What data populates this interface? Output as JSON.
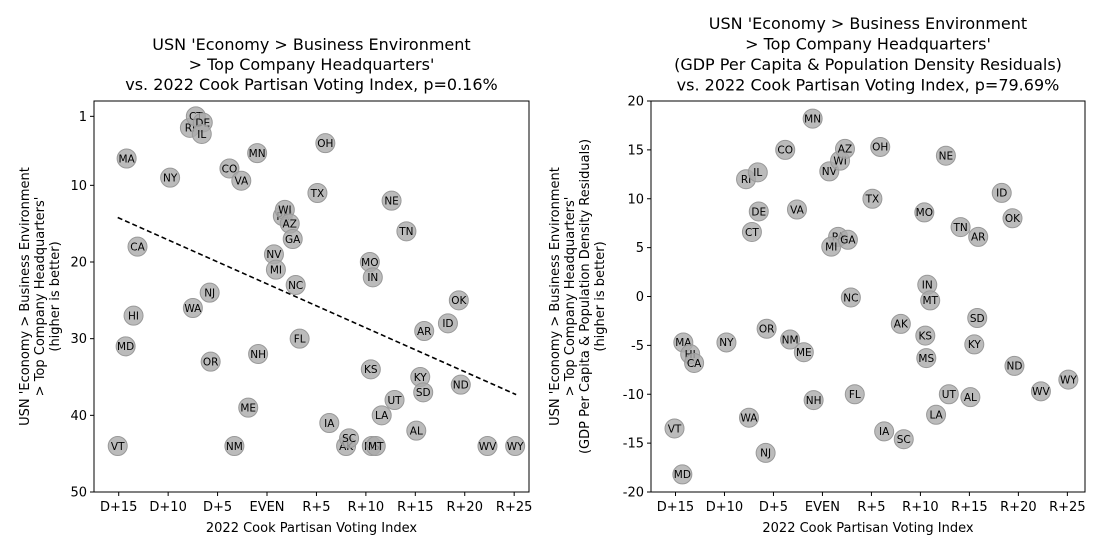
{
  "chart_data": [
    {
      "type": "scatter",
      "title": [
        "USN 'Economy > Business Environment",
        "> Top Company Headquarters'",
        "vs. 2022 Cook Partisan Voting Index, p=0.16%"
      ],
      "xlabel": "2022 Cook Partisan Voting Index",
      "ylabel": [
        "USN 'Economy > Business Environment",
        "> Top Company Headquarters'",
        "(higher is better)"
      ],
      "x_ticks": [
        {
          "value": -15,
          "label": "D+15"
        },
        {
          "value": -10,
          "label": "D+10"
        },
        {
          "value": -5,
          "label": "D+5"
        },
        {
          "value": 0,
          "label": "EVEN"
        },
        {
          "value": 5,
          "label": "R+5"
        },
        {
          "value": 10,
          "label": "R+10"
        },
        {
          "value": 15,
          "label": "R+15"
        },
        {
          "value": 20,
          "label": "R+20"
        },
        {
          "value": 25,
          "label": "R+25"
        }
      ],
      "y_ticks": [
        1,
        10,
        20,
        30,
        40,
        50
      ],
      "xlim": [
        -17.5,
        26.5
      ],
      "ylim": [
        50,
        -1
      ],
      "y_inverted": true,
      "trendline": {
        "style": "dashed",
        "x": [
          -15.1,
          25.2
        ],
        "y": [
          14.2,
          37.3
        ]
      },
      "points": [
        {
          "label": "VT",
          "x": -15.1,
          "y": 44
        },
        {
          "label": "MD",
          "x": -14.3,
          "y": 31
        },
        {
          "label": "MA",
          "x": -14.2,
          "y": 6.5
        },
        {
          "label": "HI",
          "x": -13.5,
          "y": 27
        },
        {
          "label": "CA",
          "x": -13.1,
          "y": 18
        },
        {
          "label": "NY",
          "x": -9.8,
          "y": 9
        },
        {
          "label": "WA",
          "x": -7.5,
          "y": 26
        },
        {
          "label": "RI",
          "x": -7.8,
          "y": 2.5
        },
        {
          "label": "CT",
          "x": -7.2,
          "y": 1
        },
        {
          "label": "DE",
          "x": -6.5,
          "y": 1.8
        },
        {
          "label": "IL",
          "x": -6.6,
          "y": 3.3
        },
        {
          "label": "NJ",
          "x": -5.8,
          "y": 24
        },
        {
          "label": "OR",
          "x": -5.7,
          "y": 33
        },
        {
          "label": "CO",
          "x": -3.8,
          "y": 7.8
        },
        {
          "label": "NM",
          "x": -3.3,
          "y": 44
        },
        {
          "label": "VA",
          "x": -2.6,
          "y": 9.4
        },
        {
          "label": "ME",
          "x": -1.9,
          "y": 39
        },
        {
          "label": "MN",
          "x": -1,
          "y": 5.8
        },
        {
          "label": "NH",
          "x": -0.9,
          "y": 32
        },
        {
          "label": "NV",
          "x": 0.7,
          "y": 19
        },
        {
          "label": "MI",
          "x": 0.9,
          "y": 21
        },
        {
          "label": "PA",
          "x": 1.6,
          "y": 14
        },
        {
          "label": "WI",
          "x": 1.8,
          "y": 13.2
        },
        {
          "label": "AZ",
          "x": 2.3,
          "y": 15
        },
        {
          "label": "GA",
          "x": 2.6,
          "y": 17
        },
        {
          "label": "NC",
          "x": 2.9,
          "y": 23
        },
        {
          "label": "FL",
          "x": 3.3,
          "y": 30
        },
        {
          "label": "OH",
          "x": 5.9,
          "y": 4.5
        },
        {
          "label": "TX",
          "x": 5.1,
          "y": 11
        },
        {
          "label": "IA",
          "x": 6.3,
          "y": 41
        },
        {
          "label": "AK",
          "x": 8,
          "y": 44
        },
        {
          "label": "SC",
          "x": 8.3,
          "y": 43
        },
        {
          "label": "NE",
          "x": 12.6,
          "y": 12
        },
        {
          "label": "MO",
          "x": 10.4,
          "y": 20
        },
        {
          "label": "IN",
          "x": 10.7,
          "y": 22
        },
        {
          "label": "KS",
          "x": 10.5,
          "y": 34
        },
        {
          "label": "MS",
          "x": 10.6,
          "y": 44
        },
        {
          "label": "MT",
          "x": 11,
          "y": 44
        },
        {
          "label": "LA",
          "x": 11.6,
          "y": 40
        },
        {
          "label": "UT",
          "x": 12.9,
          "y": 38
        },
        {
          "label": "TN",
          "x": 14.1,
          "y": 16
        },
        {
          "label": "AL",
          "x": 15.1,
          "y": 42
        },
        {
          "label": "KY",
          "x": 15.5,
          "y": 35
        },
        {
          "label": "SD",
          "x": 15.8,
          "y": 37
        },
        {
          "label": "AR",
          "x": 15.9,
          "y": 29
        },
        {
          "label": "ID",
          "x": 18.3,
          "y": 28
        },
        {
          "label": "OK",
          "x": 19.4,
          "y": 25
        },
        {
          "label": "ND",
          "x": 19.6,
          "y": 36
        },
        {
          "label": "WV",
          "x": 22.3,
          "y": 44
        },
        {
          "label": "WY",
          "x": 25.1,
          "y": 44
        }
      ]
    },
    {
      "type": "scatter",
      "title": [
        "USN 'Economy > Business Environment",
        "> Top Company Headquarters'",
        "(GDP Per Capita & Population Density Residuals)",
        "vs. 2022 Cook Partisan Voting Index, p=79.69%"
      ],
      "xlabel": "2022 Cook Partisan Voting Index",
      "ylabel": [
        "USN 'Economy > Business Environment",
        "> Top Company Headquarters'",
        "(GDP Per Capita & Population Density Residuals)",
        "(higher is better)"
      ],
      "x_ticks": [
        {
          "value": -15,
          "label": "D+15"
        },
        {
          "value": -10,
          "label": "D+10"
        },
        {
          "value": -5,
          "label": "D+5"
        },
        {
          "value": 0,
          "label": "EVEN"
        },
        {
          "value": 5,
          "label": "R+5"
        },
        {
          "value": 10,
          "label": "R+10"
        },
        {
          "value": 15,
          "label": "R+15"
        },
        {
          "value": 20,
          "label": "R+20"
        },
        {
          "value": 25,
          "label": "R+25"
        }
      ],
      "y_ticks": [
        20,
        15,
        10,
        5,
        0,
        -5,
        -10,
        -15,
        -20
      ],
      "xlim": [
        -17.5,
        26.8
      ],
      "ylim": [
        -20,
        20
      ],
      "y_inverted": false,
      "points": [
        {
          "label": "VT",
          "x": -15.1,
          "y": -13.5
        },
        {
          "label": "MD",
          "x": -14.3,
          "y": -18.2
        },
        {
          "label": "MA",
          "x": -14.2,
          "y": -4.7
        },
        {
          "label": "HI",
          "x": -13.5,
          "y": -5.9
        },
        {
          "label": "CA",
          "x": -13.1,
          "y": -6.8
        },
        {
          "label": "NY",
          "x": -9.8,
          "y": -4.7
        },
        {
          "label": "RI",
          "x": -7.8,
          "y": 12
        },
        {
          "label": "IL",
          "x": -6.6,
          "y": 12.7
        },
        {
          "label": "DE",
          "x": -6.5,
          "y": 8.7
        },
        {
          "label": "CT",
          "x": -7.2,
          "y": 6.6
        },
        {
          "label": "WA",
          "x": -7.5,
          "y": -12.4
        },
        {
          "label": "NJ",
          "x": -5.8,
          "y": -16
        },
        {
          "label": "OR",
          "x": -5.7,
          "y": -3.3
        },
        {
          "label": "CO",
          "x": -3.8,
          "y": 15
        },
        {
          "label": "VA",
          "x": -2.6,
          "y": 8.9
        },
        {
          "label": "NM",
          "x": -3.3,
          "y": -4.4
        },
        {
          "label": "ME",
          "x": -1.9,
          "y": -5.7
        },
        {
          "label": "MN",
          "x": -1,
          "y": 18.2
        },
        {
          "label": "NH",
          "x": -0.9,
          "y": -10.6
        },
        {
          "label": "NV",
          "x": 0.7,
          "y": 12.8
        },
        {
          "label": "WI",
          "x": 1.8,
          "y": 13.9
        },
        {
          "label": "AZ",
          "x": 2.3,
          "y": 15.1
        },
        {
          "label": "PA",
          "x": 1.6,
          "y": 6.1
        },
        {
          "label": "MI",
          "x": 0.9,
          "y": 5.1
        },
        {
          "label": "GA",
          "x": 2.6,
          "y": 5.8
        },
        {
          "label": "NC",
          "x": 2.9,
          "y": -0.1
        },
        {
          "label": "FL",
          "x": 3.3,
          "y": -10
        },
        {
          "label": "OH",
          "x": 5.9,
          "y": 15.3
        },
        {
          "label": "TX",
          "x": 5.1,
          "y": 10
        },
        {
          "label": "IA",
          "x": 6.3,
          "y": -13.8
        },
        {
          "label": "SC",
          "x": 8.3,
          "y": -14.6
        },
        {
          "label": "AK",
          "x": 8,
          "y": -2.8
        },
        {
          "label": "NE",
          "x": 12.6,
          "y": 14.4
        },
        {
          "label": "MO",
          "x": 10.4,
          "y": 8.6
        },
        {
          "label": "IN",
          "x": 10.7,
          "y": 1.2
        },
        {
          "label": "MT",
          "x": 11,
          "y": -0.4
        },
        {
          "label": "KS",
          "x": 10.5,
          "y": -4
        },
        {
          "label": "MS",
          "x": 10.6,
          "y": -6.3
        },
        {
          "label": "LA",
          "x": 11.6,
          "y": -12.1
        },
        {
          "label": "UT",
          "x": 12.9,
          "y": -10
        },
        {
          "label": "TN",
          "x": 14.1,
          "y": 7.1
        },
        {
          "label": "AR",
          "x": 15.9,
          "y": 6.1
        },
        {
          "label": "SD",
          "x": 15.8,
          "y": -2.2
        },
        {
          "label": "KY",
          "x": 15.5,
          "y": -4.9
        },
        {
          "label": "AL",
          "x": 15.1,
          "y": -10.3
        },
        {
          "label": "ID",
          "x": 18.3,
          "y": 10.6
        },
        {
          "label": "OK",
          "x": 19.4,
          "y": 8
        },
        {
          "label": "ND",
          "x": 19.6,
          "y": -7.1
        },
        {
          "label": "WV",
          "x": 22.3,
          "y": -9.7
        },
        {
          "label": "WY",
          "x": 25.1,
          "y": -8.5
        }
      ]
    }
  ]
}
